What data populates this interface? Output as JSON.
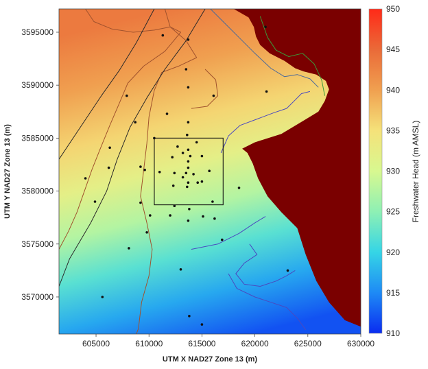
{
  "chart_data": {
    "type": "heatmap",
    "title": "",
    "xlabel": "UTM X NAD27 Zone 13 (m)",
    "ylabel": "UTM Y NAD27 Zone 13 (m)",
    "xlim": [
      601500,
      630000
    ],
    "ylim": [
      3566500,
      3597200
    ],
    "x_ticks": [
      605000,
      610000,
      615000,
      620000,
      625000,
      630000
    ],
    "x_tick_labels": [
      "605000",
      "610000",
      "615000",
      "620000",
      "625000",
      "630000"
    ],
    "y_ticks": [
      3570000,
      3575000,
      3580000,
      3585000,
      3590000,
      3595000
    ],
    "y_tick_labels": [
      "3570000",
      "3575000",
      "3580000",
      "3585000",
      "3590000",
      "3595000"
    ],
    "grid": false,
    "colorbar": {
      "label": "Freshwater Head (m AMSL)",
      "min": 910,
      "max": 950,
      "ticks": [
        910,
        915,
        920,
        925,
        930,
        935,
        940,
        945,
        950
      ],
      "tick_labels": [
        "910",
        "915",
        "920",
        "925",
        "930",
        "935",
        "940",
        "945",
        "950"
      ],
      "colors": [
        "#0a2cf0",
        "#1e8af5",
        "#35d5e6",
        "#8ef0b4",
        "#d8f890",
        "#f5e27a",
        "#f0a050",
        "#ea6a38",
        "#ff2a18"
      ],
      "no_data_color": "#7a0000"
    },
    "head_field_values": [
      {
        "y": 3597200,
        "value": 943.5
      },
      {
        "y": 3592000,
        "value": 940.0
      },
      {
        "y": 3587000,
        "value": 936.0
      },
      {
        "y": 3583000,
        "value": 932.0
      },
      {
        "y": 3579000,
        "value": 927.5
      },
      {
        "y": 3575000,
        "value": 922.0
      },
      {
        "y": 3571000,
        "value": 917.0
      },
      {
        "y": 3566500,
        "value": 912.0
      }
    ],
    "field_tilt": 0.25,
    "no_data_region": [
      [
        618000,
        3597200
      ],
      [
        630000,
        3597200
      ],
      [
        630000,
        3567200
      ],
      [
        628500,
        3567800
      ],
      [
        627000,
        3569500
      ],
      [
        625800,
        3571500
      ],
      [
        624800,
        3574000
      ],
      [
        624000,
        3576500
      ],
      [
        622500,
        3578000
      ],
      [
        621200,
        3579500
      ],
      [
        620300,
        3581200
      ],
      [
        619800,
        3582600
      ],
      [
        619300,
        3583600
      ],
      [
        618800,
        3584000
      ],
      [
        620000,
        3584600
      ],
      [
        622500,
        3585400
      ],
      [
        624500,
        3586600
      ],
      [
        626000,
        3587500
      ],
      [
        626600,
        3588500
      ],
      [
        627000,
        3589600
      ],
      [
        626700,
        3590400
      ],
      [
        625800,
        3591000
      ],
      [
        624600,
        3591300
      ],
      [
        623800,
        3591600
      ],
      [
        622800,
        3592300
      ],
      [
        621400,
        3593000
      ],
      [
        620500,
        3593800
      ],
      [
        620100,
        3594600
      ],
      [
        619900,
        3595500
      ],
      [
        619400,
        3596400
      ]
    ],
    "inset_box": {
      "x": [
        610500,
        617000
      ],
      "y": [
        3578700,
        3585000
      ]
    },
    "contours": [
      {
        "name": "",
        "color": "#a0522d",
        "points": [
          [
            604000,
            3597200
          ],
          [
            604800,
            3596000
          ],
          [
            606500,
            3595300
          ],
          [
            608500,
            3595000
          ],
          [
            610500,
            3595200
          ],
          [
            612000,
            3595500
          ],
          [
            613000,
            3595000
          ],
          [
            611500,
            3593200
          ],
          [
            609500,
            3591800
          ],
          [
            608000,
            3590200
          ],
          [
            607200,
            3588300
          ],
          [
            606300,
            3586200
          ],
          [
            605400,
            3584000
          ],
          [
            604600,
            3582000
          ],
          [
            603900,
            3580000
          ],
          [
            603200,
            3578000
          ],
          [
            602400,
            3576200
          ],
          [
            601500,
            3574500
          ]
        ]
      },
      {
        "name": "",
        "color": "#a0522d",
        "points": [
          [
            611500,
            3597200
          ],
          [
            612000,
            3595500
          ],
          [
            613500,
            3594200
          ],
          [
            614500,
            3592600
          ],
          [
            612800,
            3591800
          ],
          [
            611200,
            3591200
          ],
          [
            610500,
            3589500
          ],
          [
            610000,
            3587000
          ],
          [
            609800,
            3584500
          ],
          [
            609500,
            3582000
          ],
          [
            609200,
            3579500
          ],
          [
            609800,
            3577000
          ],
          [
            610300,
            3574500
          ],
          [
            610000,
            3572000
          ],
          [
            609300,
            3569500
          ],
          [
            609000,
            3567000
          ],
          [
            608800,
            3566500
          ]
        ]
      },
      {
        "name": "",
        "color": "#a0522d",
        "points": [
          [
            615300,
            3591500
          ],
          [
            616300,
            3590500
          ],
          [
            616500,
            3589000
          ],
          [
            615500,
            3588000
          ],
          [
            614000,
            3587800
          ]
        ]
      },
      {
        "name": "",
        "color": "#4a6a9a",
        "points": [
          [
            615800,
            3597200
          ],
          [
            617000,
            3596000
          ],
          [
            618500,
            3594500
          ],
          [
            620000,
            3593000
          ],
          [
            621500,
            3591600
          ],
          [
            622800,
            3590800
          ],
          [
            624000,
            3591000
          ],
          [
            625200,
            3590600
          ],
          [
            626000,
            3589800
          ]
        ]
      },
      {
        "name": "",
        "color": "#3a9a3a",
        "points": [
          [
            620500,
            3596500
          ],
          [
            621200,
            3594500
          ],
          [
            622000,
            3593300
          ],
          [
            623200,
            3592700
          ],
          [
            624500,
            3593000
          ],
          [
            625600,
            3592000
          ],
          [
            626300,
            3590500
          ],
          [
            626600,
            3589000
          ]
        ]
      },
      {
        "name": "",
        "color": "#4a4ac0",
        "points": [
          [
            616800,
            3583600
          ],
          [
            617500,
            3585200
          ],
          [
            618600,
            3586200
          ],
          [
            620200,
            3586800
          ],
          [
            621800,
            3587400
          ],
          [
            623000,
            3587800
          ],
          [
            623800,
            3588600
          ],
          [
            624400,
            3589200
          ],
          [
            625200,
            3589400
          ]
        ]
      },
      {
        "name": "",
        "color": "#4a4ac0",
        "points": [
          [
            614000,
            3574500
          ],
          [
            616500,
            3575000
          ],
          [
            618500,
            3576000
          ],
          [
            620000,
            3577000
          ],
          [
            621000,
            3577600
          ]
        ]
      },
      {
        "name": "",
        "color": "#4a4ac0",
        "points": [
          [
            619500,
            3575000
          ],
          [
            620200,
            3574000
          ],
          [
            619000,
            3573200
          ],
          [
            618200,
            3572200
          ],
          [
            619000,
            3571200
          ],
          [
            620500,
            3571000
          ],
          [
            622000,
            3571500
          ],
          [
            623000,
            3572000
          ],
          [
            623800,
            3572500
          ]
        ]
      },
      {
        "name": "",
        "color": "#4a4ac0",
        "points": [
          [
            617500,
            3572200
          ],
          [
            618300,
            3570800
          ],
          [
            620000,
            3570000
          ],
          [
            621500,
            3569500
          ],
          [
            623000,
            3569000
          ],
          [
            624000,
            3568000
          ],
          [
            624800,
            3566900
          ]
        ]
      },
      {
        "name": "",
        "color": "#2a2a2a",
        "points": [
          [
            601500,
            3571000
          ],
          [
            602500,
            3573600
          ],
          [
            604500,
            3577000
          ],
          [
            606000,
            3580000
          ],
          [
            607000,
            3583000
          ],
          [
            608200,
            3586000
          ],
          [
            609800,
            3588800
          ],
          [
            611500,
            3591500
          ],
          [
            613500,
            3594200
          ],
          [
            615300,
            3597200
          ]
        ]
      },
      {
        "name": "",
        "color": "#2a2a2a",
        "points": [
          [
            601500,
            3583000
          ],
          [
            603500,
            3586000
          ],
          [
            605500,
            3589000
          ],
          [
            607200,
            3591400
          ],
          [
            608800,
            3594000
          ],
          [
            610500,
            3597200
          ]
        ]
      }
    ],
    "wells": [
      [
        611300,
        3594700
      ],
      [
        613700,
        3594300
      ],
      [
        621000,
        3595500
      ],
      [
        613500,
        3591500
      ],
      [
        613700,
        3589800
      ],
      [
        616100,
        3589000
      ],
      [
        621100,
        3589400
      ],
      [
        607900,
        3589000
      ],
      [
        611700,
        3587300
      ],
      [
        608700,
        3586500
      ],
      [
        613700,
        3586500
      ],
      [
        613600,
        3585300
      ],
      [
        610500,
        3585000
      ],
      [
        614500,
        3584600
      ],
      [
        612700,
        3584200
      ],
      [
        613700,
        3583900
      ],
      [
        606300,
        3584100
      ],
      [
        612200,
        3583200
      ],
      [
        613200,
        3583600
      ],
      [
        613900,
        3583300
      ],
      [
        615000,
        3583300
      ],
      [
        613700,
        3582800
      ],
      [
        613700,
        3582200
      ],
      [
        613500,
        3581700
      ],
      [
        609200,
        3582300
      ],
      [
        606200,
        3582200
      ],
      [
        609600,
        3582000
      ],
      [
        611000,
        3581800
      ],
      [
        612400,
        3581700
      ],
      [
        613200,
        3581300
      ],
      [
        614200,
        3581600
      ],
      [
        615700,
        3581900
      ],
      [
        613700,
        3580800
      ],
      [
        614600,
        3580800
      ],
      [
        615000,
        3580900
      ],
      [
        612300,
        3580500
      ],
      [
        613600,
        3580400
      ],
      [
        604000,
        3581200
      ],
      [
        618500,
        3580300
      ],
      [
        604900,
        3579000
      ],
      [
        609200,
        3578900
      ],
      [
        612400,
        3578600
      ],
      [
        616000,
        3579000
      ],
      [
        613800,
        3578300
      ],
      [
        610100,
        3577700
      ],
      [
        612000,
        3577700
      ],
      [
        613700,
        3577200
      ],
      [
        615100,
        3577600
      ],
      [
        616200,
        3577400
      ],
      [
        609800,
        3576100
      ],
      [
        616900,
        3575400
      ],
      [
        608100,
        3574600
      ],
      [
        623100,
        3572500
      ],
      [
        613000,
        3572600
      ],
      [
        605600,
        3570000
      ],
      [
        613800,
        3568200
      ],
      [
        615000,
        3567400
      ]
    ]
  }
}
